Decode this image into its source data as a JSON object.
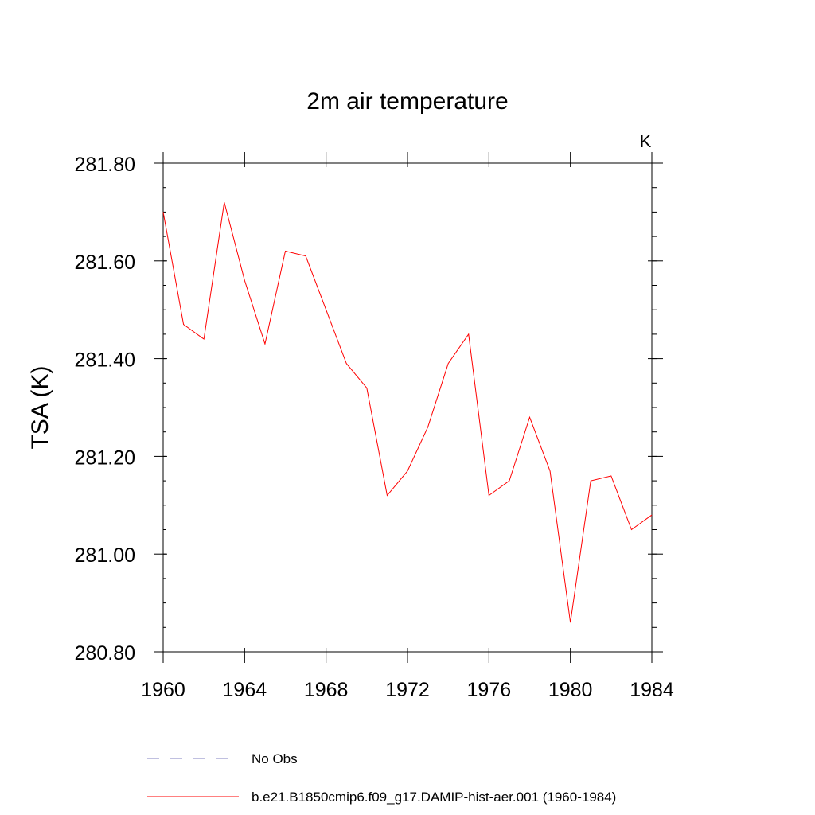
{
  "chart_data": {
    "type": "line",
    "title": "2m air temperature",
    "units_label": "K",
    "ylabel": "TSA  (K)",
    "xlabel": "",
    "xlim": [
      1960,
      1984
    ],
    "ylim": [
      280.8,
      281.8
    ],
    "x_ticks": [
      1960,
      1964,
      1968,
      1972,
      1976,
      1980,
      1984
    ],
    "x_tick_labels": [
      "1960",
      "1964",
      "1968",
      "1972",
      "1976",
      "1980",
      "1984"
    ],
    "y_ticks": [
      280.8,
      281.0,
      281.2,
      281.4,
      281.6,
      281.8
    ],
    "y_tick_labels": [
      "280.80",
      "281.00",
      "281.20",
      "281.40",
      "281.60",
      "281.80"
    ],
    "grid": false,
    "legend_position": "bottom",
    "series": [
      {
        "name": "b.e21.B1850cmip6.f09_g17.DAMIP-hist-aer.001 (1960-1984)",
        "color": "#ff0000",
        "style": "solid",
        "x": [
          1960,
          1961,
          1962,
          1963,
          1964,
          1965,
          1966,
          1967,
          1968,
          1969,
          1970,
          1971,
          1972,
          1973,
          1974,
          1975,
          1976,
          1977,
          1978,
          1979,
          1980,
          1981,
          1982,
          1983,
          1984
        ],
        "values": [
          281.7,
          281.47,
          281.44,
          281.72,
          281.56,
          281.43,
          281.62,
          281.61,
          281.5,
          281.39,
          281.34,
          281.12,
          281.17,
          281.26,
          281.39,
          281.45,
          281.12,
          281.15,
          281.28,
          281.17,
          280.86,
          281.15,
          281.16,
          281.05,
          281.08
        ]
      }
    ],
    "legend": [
      {
        "label": "No Obs",
        "color": "#8080c0",
        "style": "dashed"
      },
      {
        "label": "b.e21.B1850cmip6.f09_g17.DAMIP-hist-aer.001 (1960-1984)",
        "color": "#ff0000",
        "style": "solid"
      }
    ]
  }
}
